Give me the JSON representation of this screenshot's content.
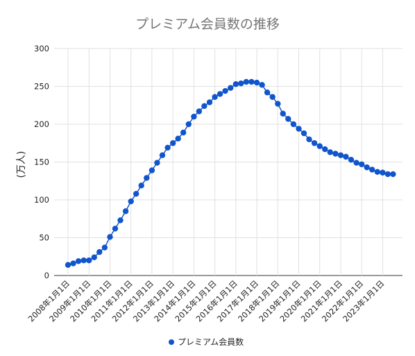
{
  "chart_data": {
    "type": "line",
    "title": "プレミアム会員数の推移",
    "ylabel": "(万人)",
    "xlabel": "",
    "ylim": [
      0,
      300
    ],
    "yticks": [
      0,
      50,
      100,
      150,
      200,
      250,
      300
    ],
    "xlim": [
      "2008-01-01",
      "2023-10-01"
    ],
    "xtick_labels": [
      "2008年1月1日",
      "2009年1月1日",
      "2010年1月1日",
      "2011年1月1日",
      "2012年1月1日",
      "2013年1月1日",
      "2014年1月1日",
      "2015年1月1日",
      "2016年1月1日",
      "2017年1月1日",
      "2018年1月1日",
      "2019年1月1日",
      "2020年1月1日",
      "2021年1月1日",
      "2022年1月1日",
      "2023年1月1日"
    ],
    "grid": true,
    "legend_position": "bottom",
    "color": "#1155cc",
    "series": [
      {
        "name": "プレミアム会員数",
        "x": [
          "2008-01-01",
          "2008-04-01",
          "2008-07-01",
          "2008-10-01",
          "2009-01-01",
          "2009-04-01",
          "2009-07-01",
          "2009-10-01",
          "2010-01-01",
          "2010-04-01",
          "2010-07-01",
          "2010-10-01",
          "2011-01-01",
          "2011-04-01",
          "2011-07-01",
          "2011-10-01",
          "2012-01-01",
          "2012-04-01",
          "2012-07-01",
          "2012-10-01",
          "2013-01-01",
          "2013-04-01",
          "2013-07-01",
          "2013-10-01",
          "2014-01-01",
          "2014-04-01",
          "2014-07-01",
          "2014-10-01",
          "2015-01-01",
          "2015-04-01",
          "2015-07-01",
          "2015-10-01",
          "2016-01-01",
          "2016-04-01",
          "2016-07-01",
          "2016-10-01",
          "2017-01-01",
          "2017-04-01",
          "2017-07-01",
          "2017-10-01",
          "2018-01-01",
          "2018-04-01",
          "2018-07-01",
          "2018-10-01",
          "2019-01-01",
          "2019-04-01",
          "2019-07-01",
          "2019-10-01",
          "2020-01-01",
          "2020-04-01",
          "2020-07-01",
          "2020-10-01",
          "2021-01-01",
          "2021-04-01",
          "2021-07-01",
          "2021-10-01",
          "2022-01-01",
          "2022-04-01",
          "2022-07-01",
          "2022-10-01",
          "2023-01-01",
          "2023-04-01",
          "2023-07-01"
        ],
        "values": [
          14,
          16,
          19,
          20,
          20,
          24,
          31,
          37,
          51,
          62,
          73,
          85,
          98,
          108,
          119,
          129,
          139,
          149,
          159,
          169,
          175,
          181,
          189,
          200,
          210,
          217,
          224,
          229,
          236,
          240,
          244,
          248,
          253,
          254,
          256,
          256,
          255,
          252,
          242,
          236,
          227,
          214,
          207,
          200,
          194,
          188,
          180,
          175,
          171,
          167,
          163,
          161,
          159,
          157,
          153,
          149,
          147,
          143,
          140,
          137,
          136,
          134,
          134
        ]
      }
    ]
  }
}
